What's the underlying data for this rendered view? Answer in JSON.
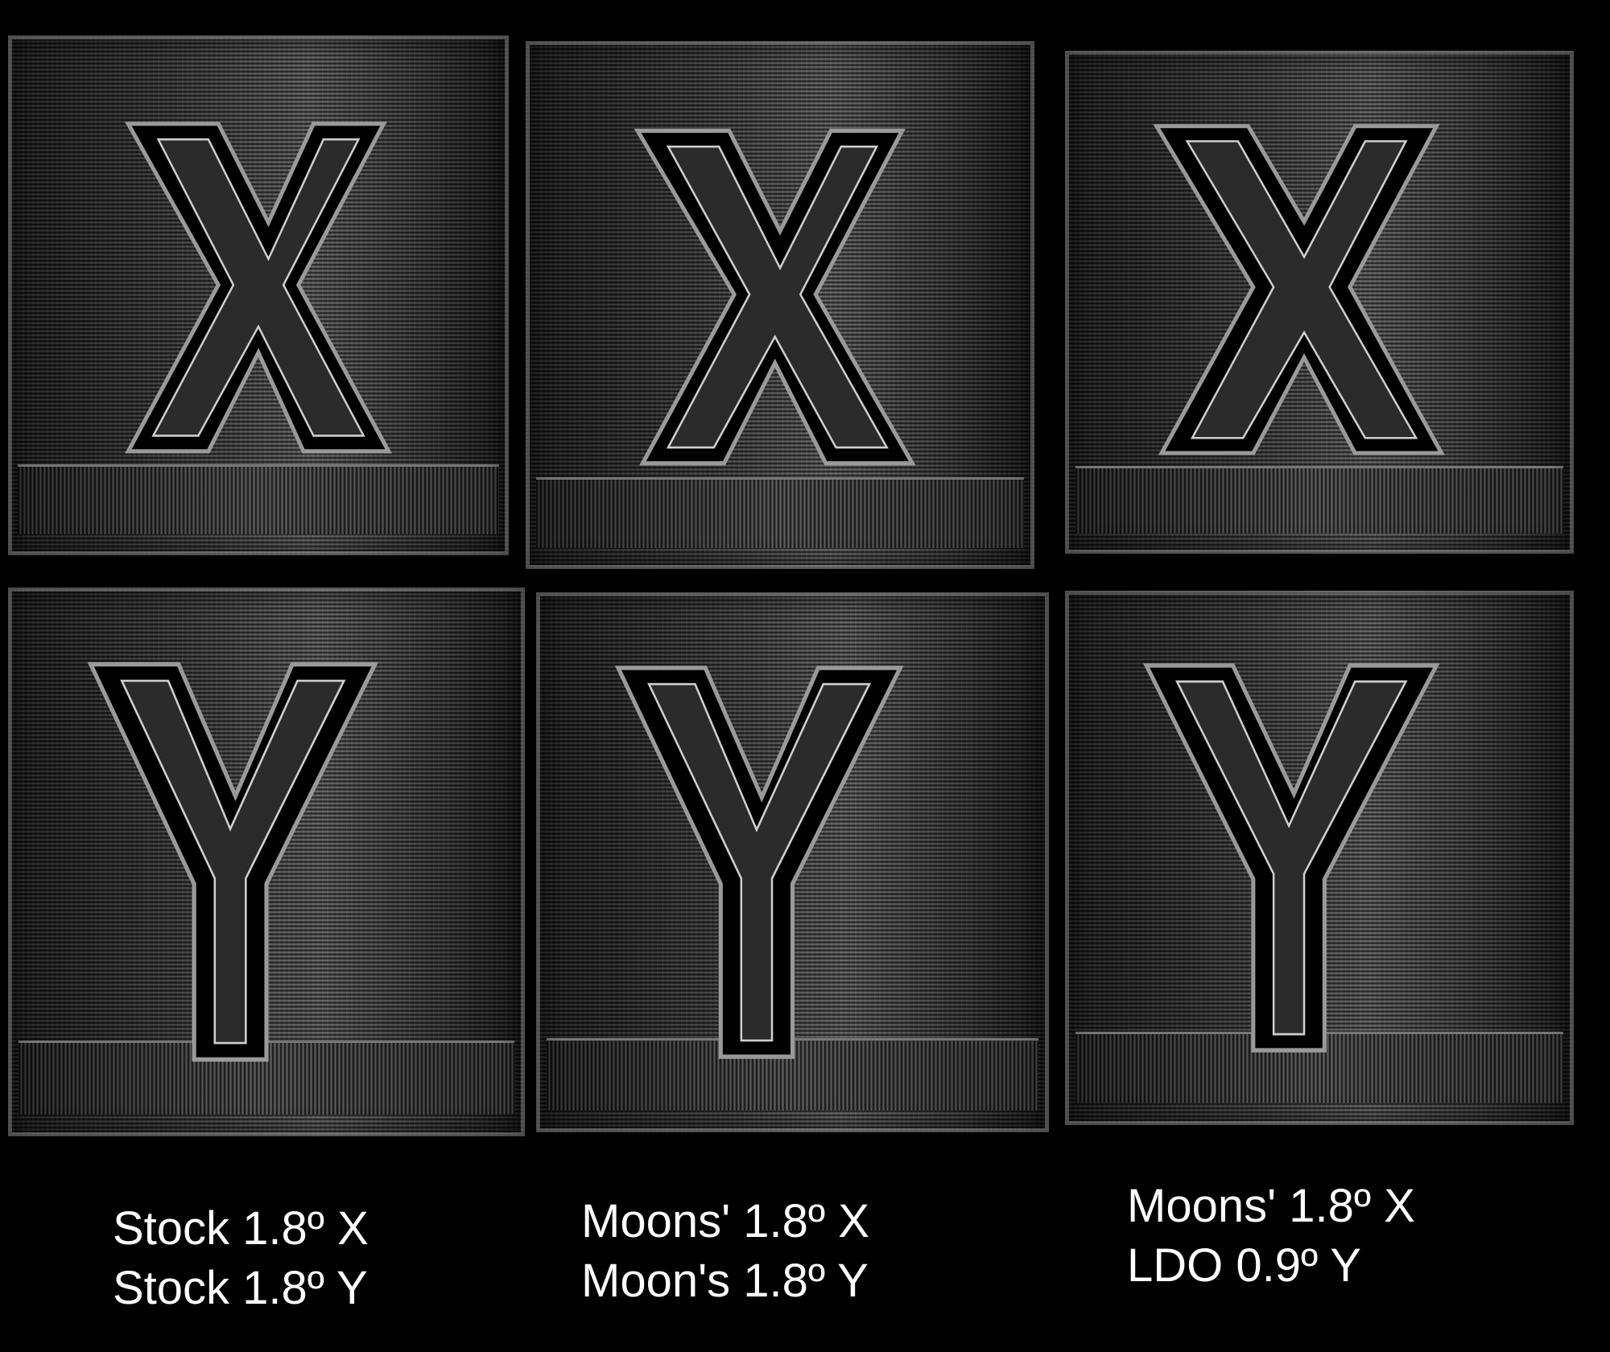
{
  "samples": [
    {
      "letter": "X",
      "column": "stock"
    },
    {
      "letter": "X",
      "column": "moons"
    },
    {
      "letter": "X",
      "column": "moons-ldo"
    },
    {
      "letter": "Y",
      "column": "stock"
    },
    {
      "letter": "Y",
      "column": "moons"
    },
    {
      "letter": "Y",
      "column": "moons-ldo"
    }
  ],
  "captions": {
    "col1": {
      "line1": "Stock 1.8º X",
      "line2": "Stock 1.8º Y"
    },
    "col2": {
      "line1": "Moons' 1.8º X",
      "line2": "Moon's 1.8º Y"
    },
    "col3": {
      "line1": "Moons' 1.8º X",
      "line2": "LDO 0.9º Y"
    }
  },
  "colors": {
    "background": "#000000",
    "caption_text": "#ffffff",
    "print_surface": "#2a2a2a"
  }
}
